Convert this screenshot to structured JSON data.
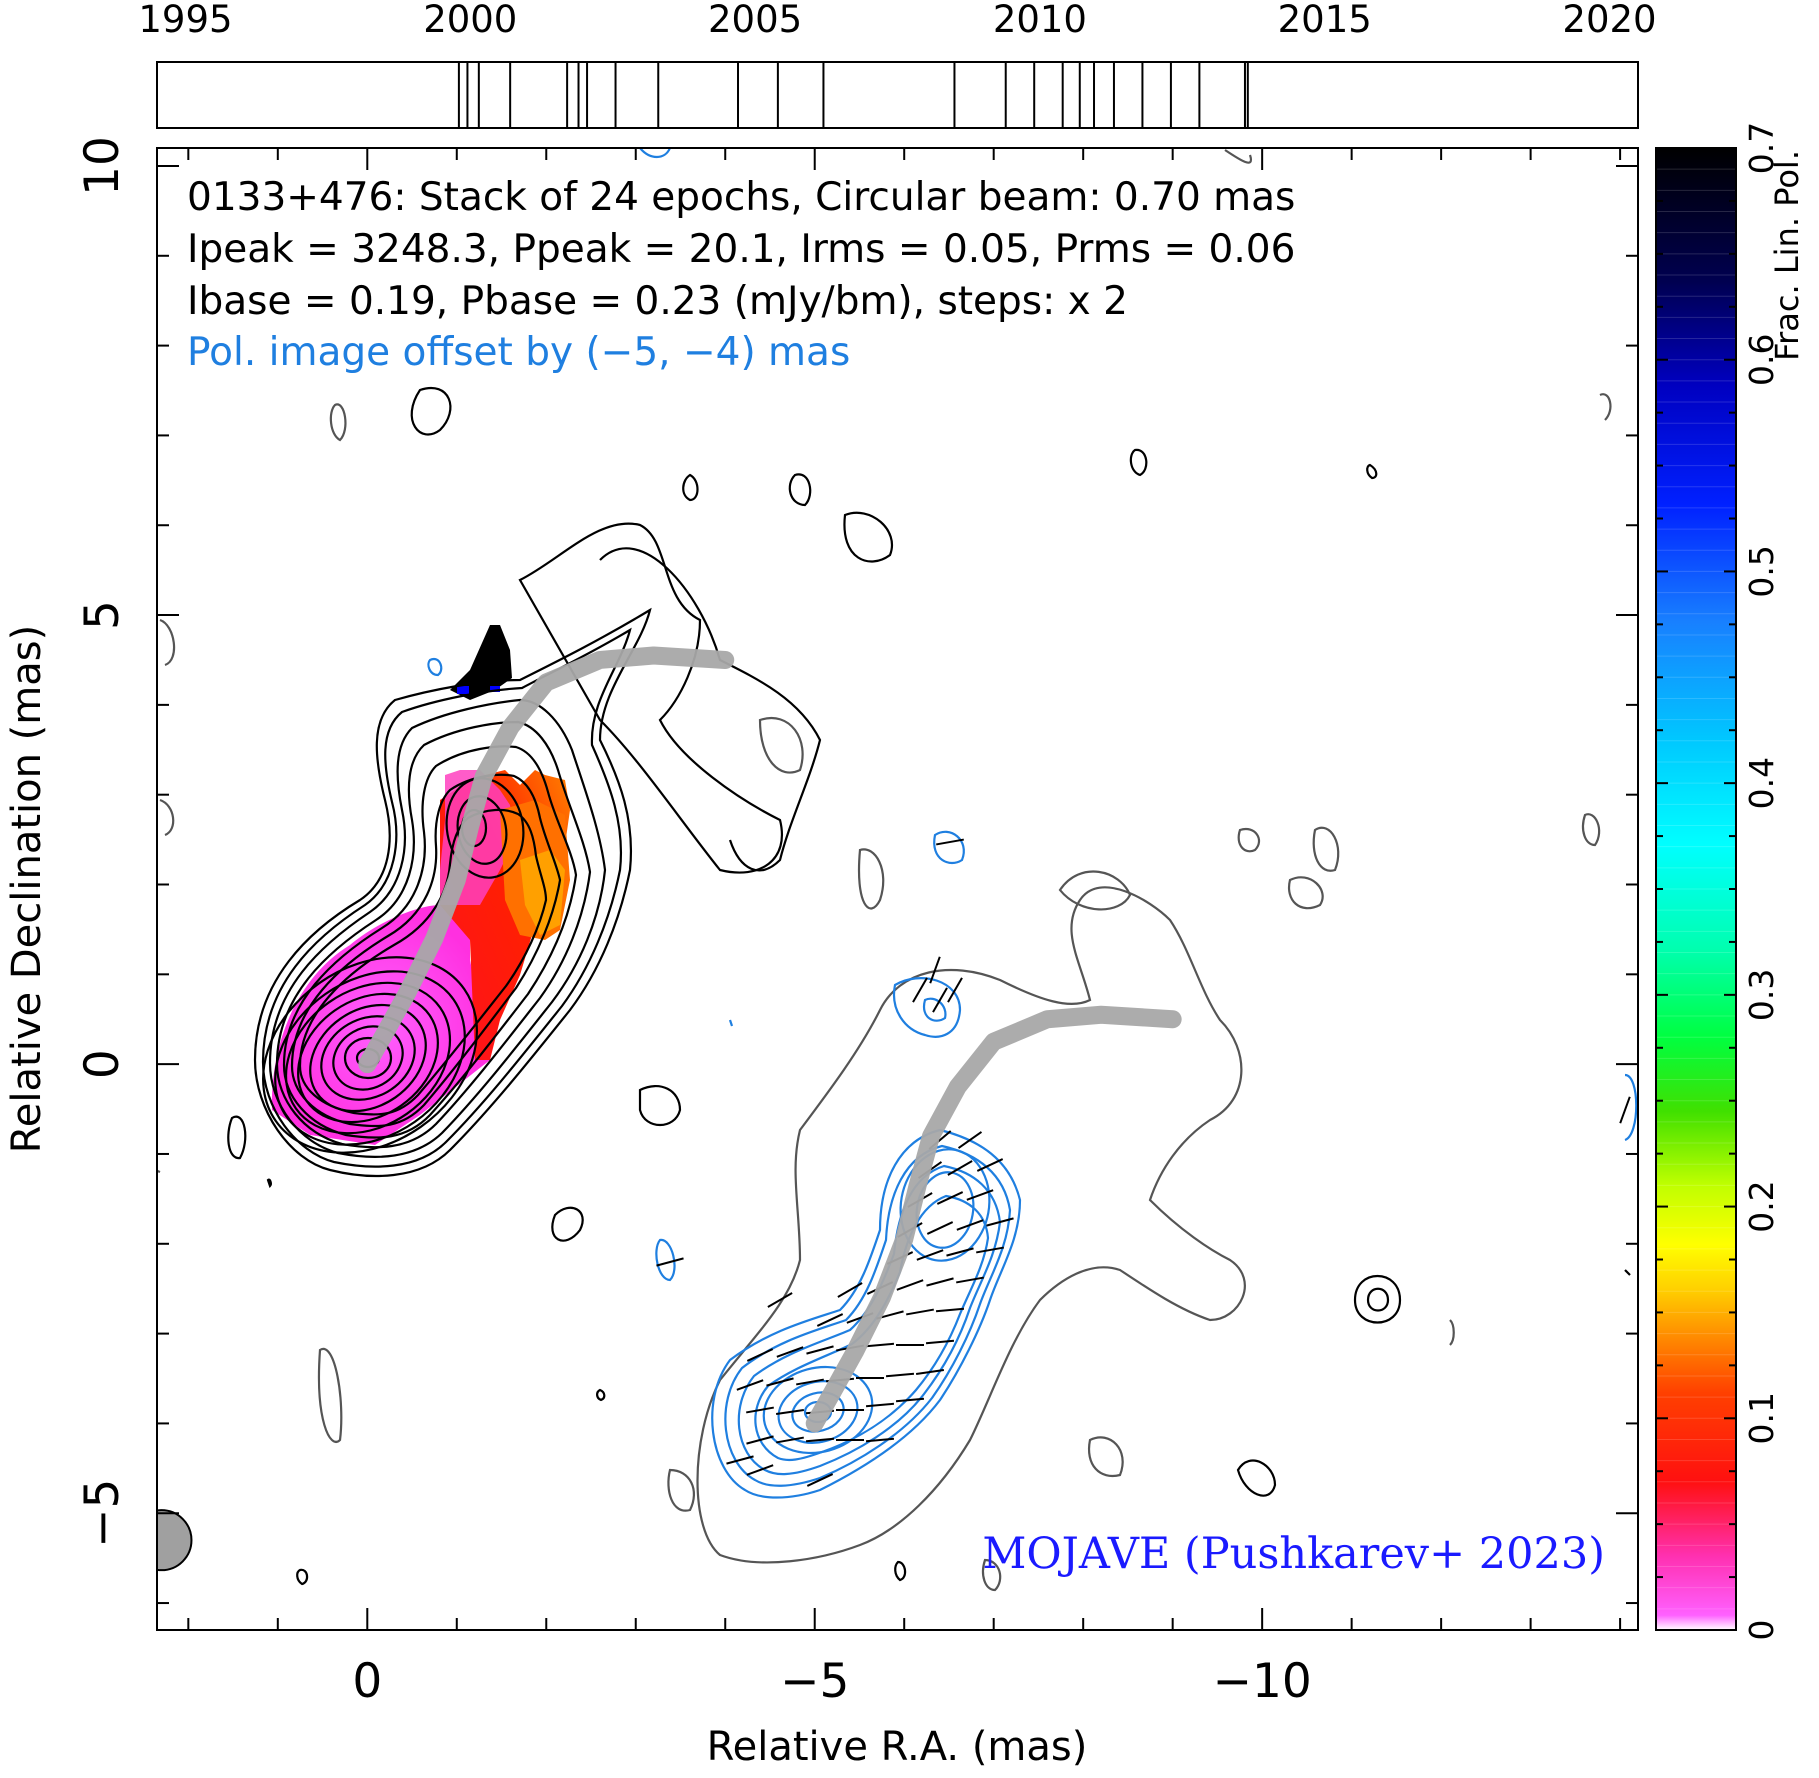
{
  "chart_data": {
    "type": "heatmap",
    "source": "0133+476",
    "info_lines": [
      "0133+476: Stack of 24 epochs, Circular beam: 0.70 mas",
      "Ipeak = 3248.3, Ppeak = 20.1, Irms = 0.05, Prms = 0.06",
      "Ibase = 0.19, Pbase = 0.23 (mJy/bm), steps: x 2"
    ],
    "offset_note": "Pol. image offset by (−5, −4) mas",
    "credit": "MOJAVE (Pushkarev+ 2023)",
    "xlabel": "Relative R.A. (mas)",
    "ylabel": "Relative Declination (mas)",
    "colorbar_label": "Frac. Lin. Pol.",
    "xlim": [
      2.35,
      -14.2
    ],
    "ylim": [
      -6.3,
      10.2
    ],
    "x_ticks": [
      0,
      -5,
      -10
    ],
    "x_tick_labels": [
      "0",
      "−5",
      "−10"
    ],
    "y_ticks": [
      -5,
      0,
      5,
      10
    ],
    "y_tick_labels": [
      "−5",
      "0",
      "5",
      "10"
    ],
    "colorbar": {
      "min": 0,
      "max": 0.7,
      "ticks": [
        0,
        0.1,
        0.2,
        0.3,
        0.4,
        0.5,
        0.6,
        0.7
      ],
      "tick_labels": [
        "0",
        "0.1",
        "0.2",
        "0.3",
        "0.4",
        "0.5",
        "0.6",
        "0.7"
      ]
    },
    "timeline": {
      "range": [
        1994.5,
        2020.5
      ],
      "tick_years": [
        1995,
        2000,
        2005,
        2010,
        2015,
        2020
      ],
      "tick_labels": [
        "1995",
        "2000",
        "2005",
        "2010",
        "2015",
        "2020"
      ],
      "epochs": [
        1999.8,
        1999.95,
        2000.15,
        2000.7,
        2001.7,
        2001.9,
        2002.05,
        2002.55,
        2003.3,
        2004.7,
        2005.4,
        2006.2,
        2008.5,
        2009.4,
        2009.9,
        2010.4,
        2010.7,
        2010.95,
        2011.3,
        2011.8,
        2012.3,
        2012.8,
        2013.6,
        2013.65
      ]
    },
    "beam": {
      "x": 2.3,
      "y": -5.3,
      "radius": 0.35
    },
    "ridge_line_total_intensity": [
      [
        0,
        0
      ],
      [
        -0.2,
        0.35
      ],
      [
        -0.45,
        0.8
      ],
      [
        -0.75,
        1.4
      ],
      [
        -1.0,
        2.05
      ],
      [
        -1.15,
        2.65
      ],
      [
        -1.3,
        3.2
      ],
      [
        -1.6,
        3.75
      ],
      [
        -2.0,
        4.25
      ],
      [
        -2.6,
        4.5
      ],
      [
        -3.2,
        4.55
      ],
      [
        -4.0,
        4.5
      ]
    ],
    "ridge_line_polarization": [
      [
        -5,
        -4
      ],
      [
        -5.2,
        -3.65
      ],
      [
        -5.45,
        -3.2
      ],
      [
        -5.75,
        -2.6
      ],
      [
        -6.0,
        -1.95
      ],
      [
        -6.15,
        -1.35
      ],
      [
        -6.3,
        -0.8
      ],
      [
        -6.6,
        -0.25
      ],
      [
        -7.0,
        0.25
      ],
      [
        -7.6,
        0.5
      ],
      [
        -8.2,
        0.55
      ],
      [
        -9.0,
        0.5
      ]
    ]
  }
}
